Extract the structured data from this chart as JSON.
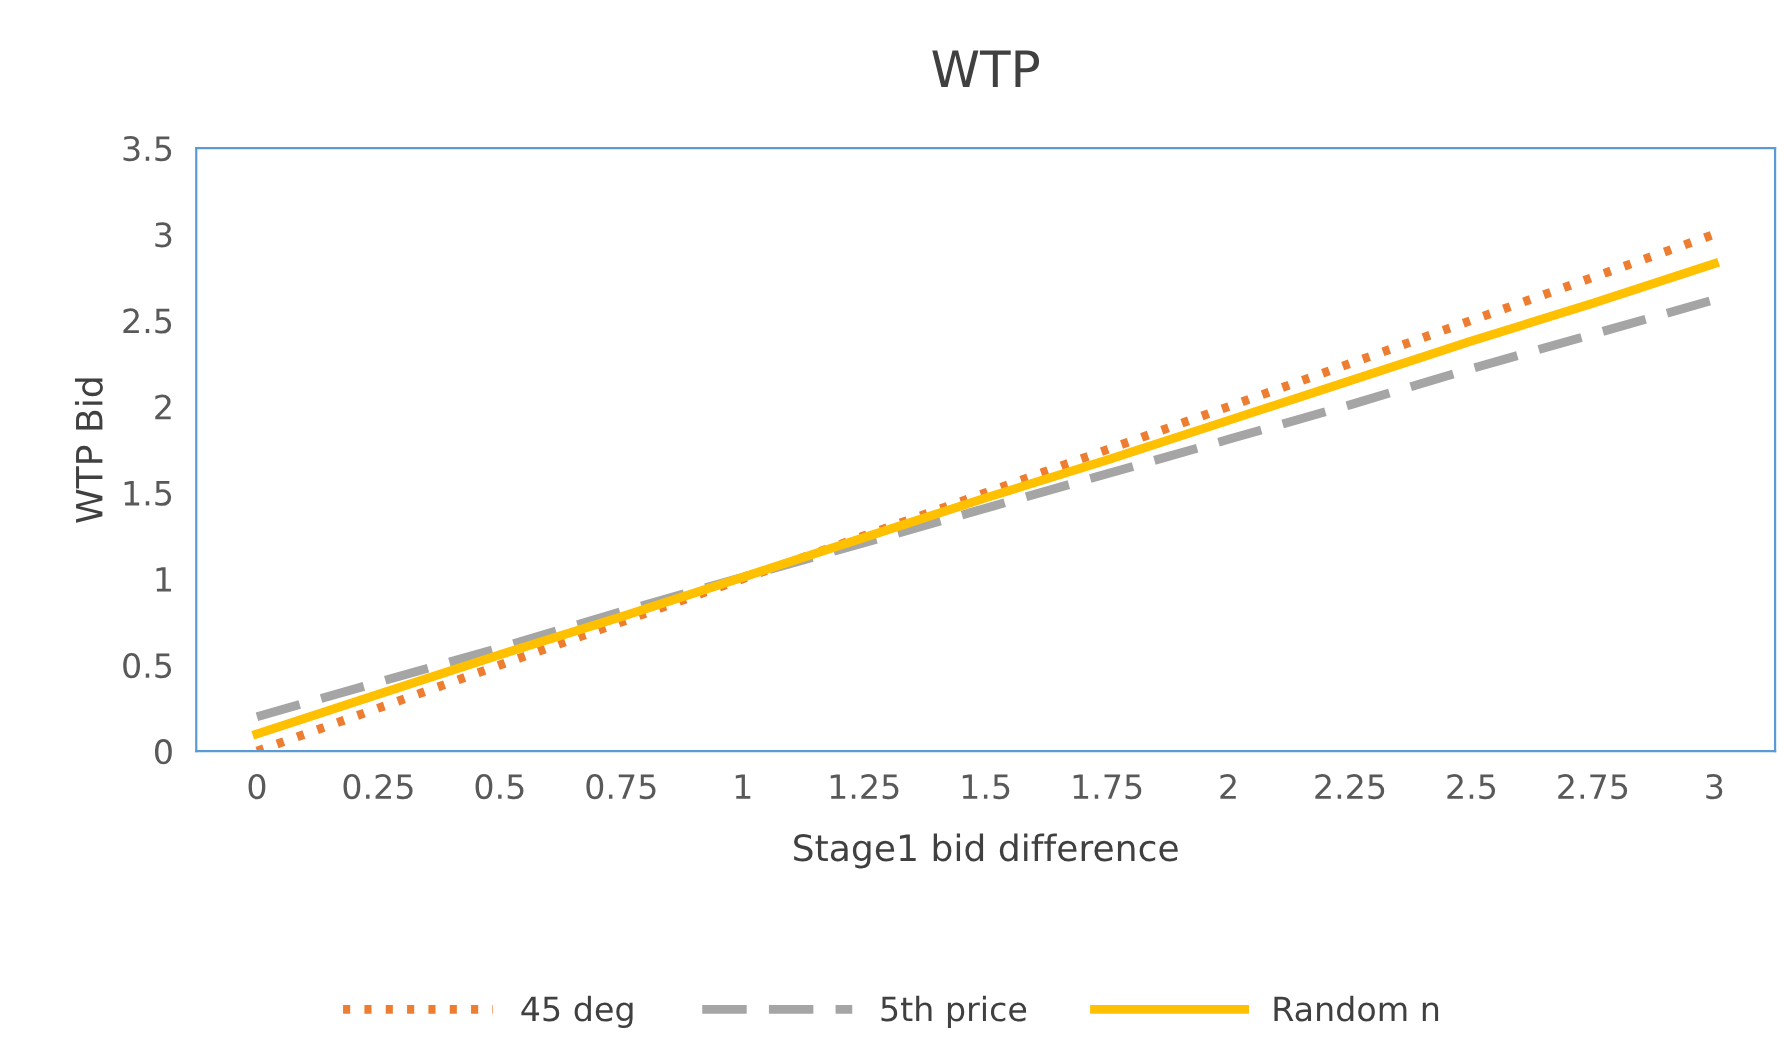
{
  "chart_data": {
    "type": "line",
    "title": "WTP",
    "xlabel": "Stage1 bid difference",
    "ylabel": "WTP Bid",
    "categories": [
      "0",
      "0.25",
      "0.5",
      "0.75",
      "1",
      "1.25",
      "1.5",
      "1.75",
      "2",
      "2.25",
      "2.5",
      "2.75",
      "3"
    ],
    "series": [
      {
        "name": "45 deg",
        "color": "#ed7d31",
        "line_style": "dotted",
        "values": [
          0,
          0.25,
          0.5,
          0.75,
          1,
          1.25,
          1.5,
          1.75,
          2,
          2.25,
          2.5,
          2.75,
          3
        ]
      },
      {
        "name": "5th price",
        "color": "#a5a5a5",
        "line_style": "dashed",
        "values": [
          0.2,
          0.4,
          0.6,
          0.81,
          1.01,
          1.21,
          1.41,
          1.61,
          1.81,
          2.01,
          2.22,
          2.42,
          2.62
        ]
      },
      {
        "name": "Random n",
        "color": "#ffc000",
        "line_style": "solid",
        "values": [
          0.1,
          0.33,
          0.56,
          0.78,
          1.01,
          1.24,
          1.47,
          1.69,
          1.92,
          2.15,
          2.38,
          2.6,
          2.83
        ]
      }
    ],
    "ylim": [
      0,
      3.5
    ],
    "yticks": [
      0,
      0.5,
      1,
      1.5,
      2,
      2.5,
      3,
      3.5
    ],
    "grid": false,
    "legend": "bottom",
    "marker": "none"
  }
}
